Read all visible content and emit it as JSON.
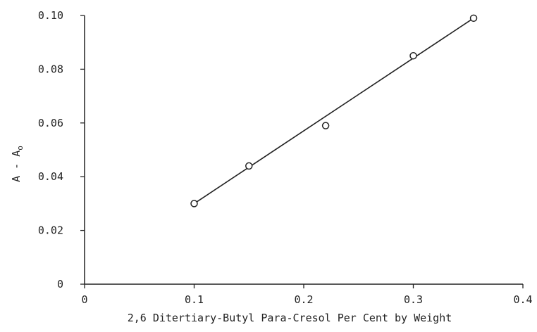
{
  "chart_data": {
    "type": "scatter",
    "title": "",
    "xlabel": "2,6 Ditertiary-Butyl Para-Cresol Per Cent by Weight",
    "ylabel": "A - A",
    "ylabel_subscript": "o",
    "xlim": [
      0,
      0.4
    ],
    "ylim": [
      0,
      0.1
    ],
    "x_ticks": [
      0,
      0.1,
      0.2,
      0.3,
      0.4
    ],
    "x_tick_labels": [
      "0",
      "0.1",
      "0.2",
      "0.3",
      "0.4"
    ],
    "y_ticks": [
      0,
      0.02,
      0.04,
      0.06,
      0.08,
      0.1
    ],
    "y_tick_labels": [
      "0",
      "0.02",
      "0.04",
      "0.06",
      "0.08",
      "0.10"
    ],
    "grid": false,
    "legend": "none",
    "series": [
      {
        "marker": "open-circle",
        "x": [
          0.1,
          0.15,
          0.22,
          0.3,
          0.355
        ],
        "y": [
          0.03,
          0.044,
          0.059,
          0.085,
          0.099
        ]
      }
    ],
    "fit_line": {
      "x": [
        0.1,
        0.355
      ],
      "y": [
        0.03,
        0.099
      ]
    },
    "colors": {
      "ink": "#222222"
    }
  }
}
